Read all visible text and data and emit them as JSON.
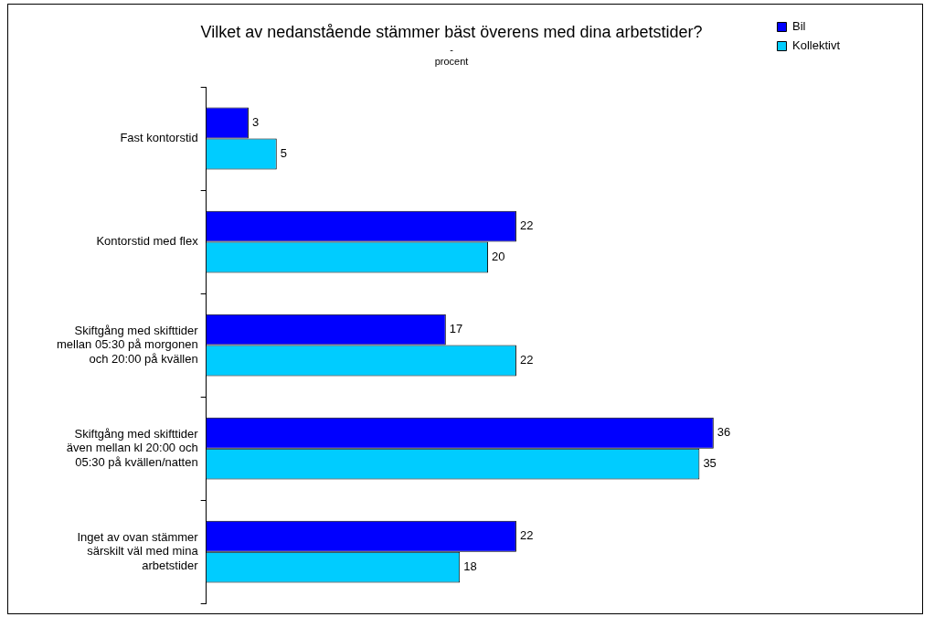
{
  "chart_data": {
    "type": "bar",
    "orientation": "horizontal",
    "title": "Vilket av nedanstående stämmer bäst överens med dina arbetstider?",
    "subtitle": "-\nprocent",
    "categories": [
      "Fast kontorstid",
      "Kontorstid med flex",
      "Skiftgång med skifttider mellan 05:30 på morgonen och 20:00 på kvällen",
      "Skiftgång med skifttider även mellan kl 20:00 och 05:30 på kvällen/natten",
      "Inget av ovan stämmer särskilt väl med mina arbetstider"
    ],
    "series": [
      {
        "name": "Bil",
        "color": "#0000ff",
        "values": [
          3,
          22,
          17,
          36,
          22
        ]
      },
      {
        "name": "Kollektivt",
        "color": "#00ccff",
        "values": [
          5,
          20,
          22,
          35,
          18
        ]
      }
    ],
    "data_labels": true,
    "legend": "right"
  }
}
